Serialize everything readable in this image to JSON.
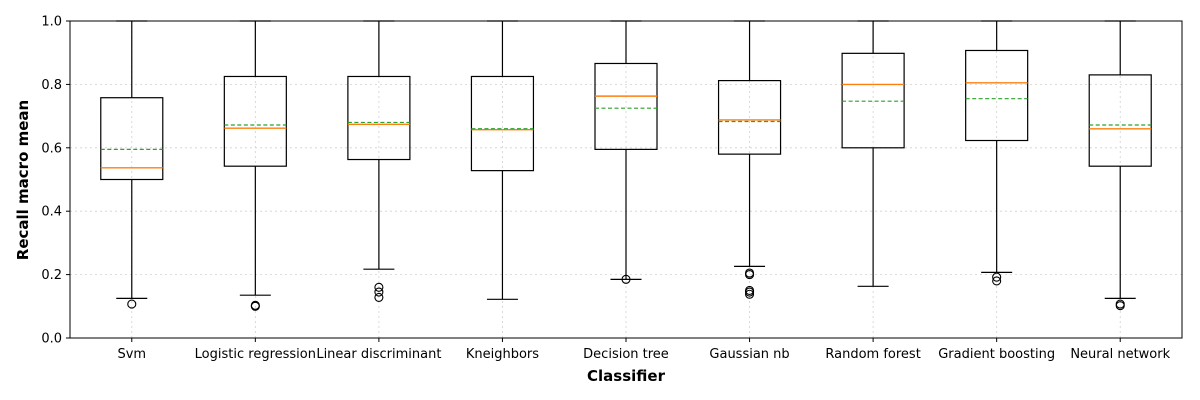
{
  "chart_data": {
    "type": "box",
    "title": "",
    "xlabel": "Classifier",
    "ylabel": "Recall macro mean",
    "ylim": [
      0.0,
      1.0
    ],
    "yticks": [
      0.0,
      0.2,
      0.4,
      0.6,
      0.8,
      1.0
    ],
    "ytick_labels": [
      "0.0",
      "0.2",
      "0.4",
      "0.6",
      "0.8",
      "1.0"
    ],
    "grid": true,
    "categories": [
      "Svm",
      "Logistic regression",
      "Linear discriminant",
      "Kneighbors",
      "Decision tree",
      "Gaussian nb",
      "Random forest",
      "Gradient boosting",
      "Neural network"
    ],
    "boxes": [
      {
        "q1": 0.5,
        "median": 0.537,
        "mean": 0.595,
        "q3": 0.758,
        "whisker_low": 0.125,
        "whisker_high": 1.0,
        "outliers": [
          0.107
        ]
      },
      {
        "q1": 0.542,
        "median": 0.662,
        "mean": 0.672,
        "q3": 0.825,
        "whisker_low": 0.135,
        "whisker_high": 1.0,
        "outliers": [
          0.103,
          0.1
        ]
      },
      {
        "q1": 0.563,
        "median": 0.674,
        "mean": 0.68,
        "q3": 0.825,
        "whisker_low": 0.217,
        "whisker_high": 1.0,
        "outliers": [
          0.16,
          0.145,
          0.128
        ]
      },
      {
        "q1": 0.528,
        "median": 0.657,
        "mean": 0.66,
        "q3": 0.825,
        "whisker_low": 0.122,
        "whisker_high": 1.0,
        "outliers": []
      },
      {
        "q1": 0.595,
        "median": 0.763,
        "mean": 0.725,
        "q3": 0.866,
        "whisker_low": 0.185,
        "whisker_high": 1.0,
        "outliers": [
          0.185
        ]
      },
      {
        "q1": 0.58,
        "median": 0.688,
        "mean": 0.683,
        "q3": 0.812,
        "whisker_low": 0.226,
        "whisker_high": 1.0,
        "outliers": [
          0.205,
          0.2,
          0.15,
          0.145,
          0.138
        ]
      },
      {
        "q1": 0.6,
        "median": 0.8,
        "mean": 0.747,
        "q3": 0.898,
        "whisker_low": 0.163,
        "whisker_high": 1.0,
        "outliers": []
      },
      {
        "q1": 0.623,
        "median": 0.805,
        "mean": 0.755,
        "q3": 0.907,
        "whisker_low": 0.207,
        "whisker_high": 1.0,
        "outliers": [
          0.192,
          0.18
        ]
      },
      {
        "q1": 0.542,
        "median": 0.66,
        "mean": 0.672,
        "q3": 0.83,
        "whisker_low": 0.125,
        "whisker_high": 1.0,
        "outliers": [
          0.107,
          0.102
        ]
      }
    ],
    "colors": {
      "box": "#000000",
      "median": "#ff7f0e",
      "mean": "#2ca02c",
      "grid": "#d0d0d0"
    }
  }
}
